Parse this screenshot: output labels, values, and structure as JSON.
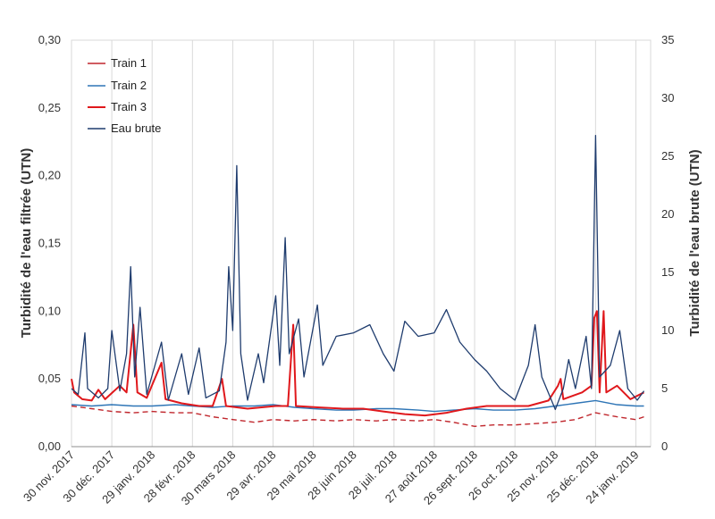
{
  "chart_data": {
    "type": "line",
    "ylabel": "Turbidité de l'eau filtrée (UTN)",
    "y2label": "Turbidité de l'eau brute (UTN)",
    "ylim": [
      0,
      0.3
    ],
    "y2lim": [
      0,
      35
    ],
    "yticks": [
      "0,00",
      "0,05",
      "0,10",
      "0,15",
      "0,20",
      "0,25",
      "0,30"
    ],
    "y2ticks": [
      "0",
      "5",
      "10",
      "15",
      "20",
      "25",
      "30",
      "35"
    ],
    "xlim": [
      "2017-11-30",
      "2019-02-04"
    ],
    "xticks": [
      "30 nov. 2017",
      "30 déc. 2017",
      "29 janv. 2018",
      "28 févr. 2018",
      "30 mars 2018",
      "29 avr. 2018",
      "29 mai 2018",
      "28 juin 2018",
      "28 juil. 2018",
      "27 août 2018",
      "26 sept. 2018",
      "26 oct. 2018",
      "25 nov. 2018",
      "25 déc. 2018",
      "24 janv. 2019"
    ],
    "grid": "vertical",
    "legend_position": "top-left",
    "series": [
      {
        "name": "Train 1",
        "axis": "left",
        "color": "#c0272d",
        "dash": "6,4",
        "width": 1.4,
        "points": [
          [
            "2017-11-30",
            0.03
          ],
          [
            "2017-12-15",
            0.028
          ],
          [
            "2017-12-30",
            0.026
          ],
          [
            "2018-01-15",
            0.025
          ],
          [
            "2018-01-29",
            0.026
          ],
          [
            "2018-02-15",
            0.025
          ],
          [
            "2018-02-28",
            0.025
          ],
          [
            "2018-03-15",
            0.022
          ],
          [
            "2018-03-30",
            0.02
          ],
          [
            "2018-04-15",
            0.018
          ],
          [
            "2018-04-29",
            0.02
          ],
          [
            "2018-05-15",
            0.019
          ],
          [
            "2018-05-29",
            0.02
          ],
          [
            "2018-06-15",
            0.019
          ],
          [
            "2018-06-28",
            0.02
          ],
          [
            "2018-07-15",
            0.019
          ],
          [
            "2018-07-28",
            0.02
          ],
          [
            "2018-08-15",
            0.019
          ],
          [
            "2018-08-27",
            0.02
          ],
          [
            "2018-09-10",
            0.018
          ],
          [
            "2018-09-26",
            0.015
          ],
          [
            "2018-10-10",
            0.016
          ],
          [
            "2018-10-26",
            0.016
          ],
          [
            "2018-11-10",
            0.017
          ],
          [
            "2018-11-25",
            0.018
          ],
          [
            "2018-12-10",
            0.02
          ],
          [
            "2018-12-25",
            0.025
          ],
          [
            "2019-01-10",
            0.022
          ],
          [
            "2019-01-24",
            0.02
          ],
          [
            "2019-01-30",
            0.022
          ]
        ]
      },
      {
        "name": "Train 2",
        "axis": "left",
        "color": "#2e75b6",
        "dash": "",
        "width": 1.4,
        "points": [
          [
            "2017-11-30",
            0.031
          ],
          [
            "2017-12-15",
            0.03
          ],
          [
            "2017-12-30",
            0.031
          ],
          [
            "2018-01-15",
            0.03
          ],
          [
            "2018-01-29",
            0.03
          ],
          [
            "2018-02-15",
            0.031
          ],
          [
            "2018-02-28",
            0.03
          ],
          [
            "2018-03-15",
            0.029
          ],
          [
            "2018-03-30",
            0.03
          ],
          [
            "2018-04-15",
            0.03
          ],
          [
            "2018-04-29",
            0.031
          ],
          [
            "2018-05-15",
            0.029
          ],
          [
            "2018-05-29",
            0.028
          ],
          [
            "2018-06-15",
            0.027
          ],
          [
            "2018-06-28",
            0.027
          ],
          [
            "2018-07-15",
            0.028
          ],
          [
            "2018-07-28",
            0.028
          ],
          [
            "2018-08-15",
            0.027
          ],
          [
            "2018-08-27",
            0.026
          ],
          [
            "2018-09-10",
            0.027
          ],
          [
            "2018-09-26",
            0.028
          ],
          [
            "2018-10-10",
            0.027
          ],
          [
            "2018-10-26",
            0.027
          ],
          [
            "2018-11-10",
            0.028
          ],
          [
            "2018-11-25",
            0.03
          ],
          [
            "2018-12-10",
            0.032
          ],
          [
            "2018-12-25",
            0.034
          ],
          [
            "2019-01-10",
            0.031
          ],
          [
            "2019-01-24",
            0.03
          ],
          [
            "2019-01-30",
            0.03
          ]
        ]
      },
      {
        "name": "Train 3",
        "axis": "left",
        "color": "#e0181c",
        "dash": "",
        "width": 2,
        "points": [
          [
            "2017-11-30",
            0.05
          ],
          [
            "2017-12-02",
            0.04
          ],
          [
            "2017-12-08",
            0.035
          ],
          [
            "2017-12-15",
            0.034
          ],
          [
            "2017-12-20",
            0.042
          ],
          [
            "2017-12-25",
            0.035
          ],
          [
            "2018-01-05",
            0.045
          ],
          [
            "2018-01-10",
            0.04
          ],
          [
            "2018-01-15",
            0.09
          ],
          [
            "2018-01-18",
            0.04
          ],
          [
            "2018-01-25",
            0.036
          ],
          [
            "2018-02-05",
            0.062
          ],
          [
            "2018-02-08",
            0.035
          ],
          [
            "2018-02-20",
            0.032
          ],
          [
            "2018-03-05",
            0.03
          ],
          [
            "2018-03-15",
            0.03
          ],
          [
            "2018-03-22",
            0.05
          ],
          [
            "2018-03-25",
            0.03
          ],
          [
            "2018-04-10",
            0.028
          ],
          [
            "2018-05-01",
            0.03
          ],
          [
            "2018-05-10",
            0.03
          ],
          [
            "2018-05-14",
            0.09
          ],
          [
            "2018-05-16",
            0.03
          ],
          [
            "2018-06-01",
            0.029
          ],
          [
            "2018-06-20",
            0.028
          ],
          [
            "2018-07-05",
            0.028
          ],
          [
            "2018-07-20",
            0.026
          ],
          [
            "2018-08-05",
            0.024
          ],
          [
            "2018-08-20",
            0.023
          ],
          [
            "2018-09-05",
            0.025
          ],
          [
            "2018-09-20",
            0.028
          ],
          [
            "2018-10-05",
            0.03
          ],
          [
            "2018-10-20",
            0.03
          ],
          [
            "2018-11-05",
            0.03
          ],
          [
            "2018-11-20",
            0.034
          ],
          [
            "2018-11-27",
            0.045
          ],
          [
            "2018-11-29",
            0.05
          ],
          [
            "2018-12-01",
            0.035
          ],
          [
            "2018-12-15",
            0.04
          ],
          [
            "2018-12-22",
            0.045
          ],
          [
            "2018-12-24",
            0.095
          ],
          [
            "2018-12-26",
            0.1
          ],
          [
            "2018-12-28",
            0.04
          ],
          [
            "2018-12-31",
            0.1
          ],
          [
            "2019-01-02",
            0.04
          ],
          [
            "2019-01-10",
            0.045
          ],
          [
            "2019-01-20",
            0.035
          ],
          [
            "2019-01-30",
            0.04
          ]
        ]
      },
      {
        "name": "Eau brute",
        "axis": "right",
        "color": "#1f3c6e",
        "dash": "",
        "width": 1.3,
        "points": [
          [
            "2017-11-30",
            5
          ],
          [
            "2017-12-05",
            4.5
          ],
          [
            "2017-12-10",
            9.8
          ],
          [
            "2017-12-12",
            5
          ],
          [
            "2017-12-20",
            4.2
          ],
          [
            "2017-12-27",
            5
          ],
          [
            "2017-12-30",
            10
          ],
          [
            "2018-01-05",
            4.8
          ],
          [
            "2018-01-10",
            8
          ],
          [
            "2018-01-13",
            15.5
          ],
          [
            "2018-01-16",
            6
          ],
          [
            "2018-01-20",
            12
          ],
          [
            "2018-01-25",
            4.5
          ],
          [
            "2018-02-05",
            9
          ],
          [
            "2018-02-10",
            4
          ],
          [
            "2018-02-20",
            8
          ],
          [
            "2018-02-25",
            4.5
          ],
          [
            "2018-03-05",
            8.5
          ],
          [
            "2018-03-10",
            4.2
          ],
          [
            "2018-03-20",
            4.8
          ],
          [
            "2018-03-25",
            9
          ],
          [
            "2018-03-27",
            15.5
          ],
          [
            "2018-03-30",
            10
          ],
          [
            "2018-04-02",
            24.2
          ],
          [
            "2018-04-05",
            8
          ],
          [
            "2018-04-10",
            4
          ],
          [
            "2018-04-18",
            8
          ],
          [
            "2018-04-22",
            5.5
          ],
          [
            "2018-05-01",
            13
          ],
          [
            "2018-05-04",
            7
          ],
          [
            "2018-05-08",
            18
          ],
          [
            "2018-05-11",
            8
          ],
          [
            "2018-05-18",
            11
          ],
          [
            "2018-05-22",
            6
          ],
          [
            "2018-06-01",
            12.2
          ],
          [
            "2018-06-05",
            7
          ],
          [
            "2018-06-15",
            9.5
          ],
          [
            "2018-06-28",
            9.8
          ],
          [
            "2018-07-10",
            10.5
          ],
          [
            "2018-07-20",
            8
          ],
          [
            "2018-07-28",
            6.5
          ],
          [
            "2018-08-05",
            10.8
          ],
          [
            "2018-08-15",
            9.5
          ],
          [
            "2018-08-27",
            9.8
          ],
          [
            "2018-09-05",
            11.8
          ],
          [
            "2018-09-15",
            9
          ],
          [
            "2018-09-26",
            7.5
          ],
          [
            "2018-10-05",
            6.5
          ],
          [
            "2018-10-15",
            5
          ],
          [
            "2018-10-26",
            4
          ],
          [
            "2018-11-05",
            7
          ],
          [
            "2018-11-10",
            10.5
          ],
          [
            "2018-11-15",
            6
          ],
          [
            "2018-11-25",
            3.2
          ],
          [
            "2018-12-01",
            5
          ],
          [
            "2018-12-05",
            7.5
          ],
          [
            "2018-12-10",
            5
          ],
          [
            "2018-12-18",
            9.5
          ],
          [
            "2018-12-22",
            5
          ],
          [
            "2018-12-25",
            26.8
          ],
          [
            "2018-12-28",
            6
          ],
          [
            "2019-01-05",
            7
          ],
          [
            "2019-01-12",
            10
          ],
          [
            "2019-01-18",
            5
          ],
          [
            "2019-01-25",
            4
          ],
          [
            "2019-01-30",
            4.8
          ]
        ]
      }
    ]
  }
}
